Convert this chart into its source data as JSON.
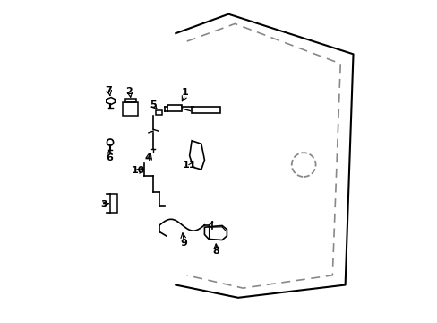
{
  "bg_color": "#ffffff",
  "line_color": "#000000",
  "dashed_color": "#888888",
  "fig_width": 4.89,
  "fig_height": 3.6,
  "dpi": 100
}
